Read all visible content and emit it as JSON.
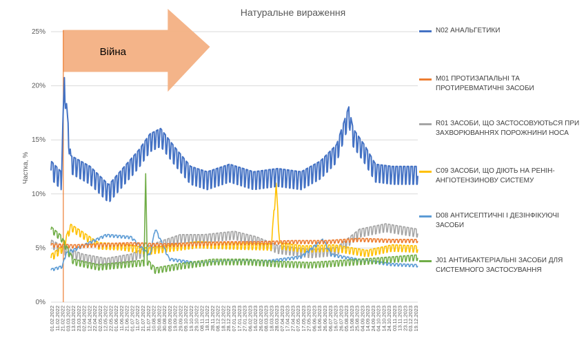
{
  "chart_data": {
    "type": "line",
    "title": "Натуральне вираження",
    "ylabel": "Частка, %",
    "xlabel": "",
    "ylim": [
      0,
      25
    ],
    "y_ticks": [
      "0%",
      "5%",
      "10%",
      "15%",
      "20%",
      "25%"
    ],
    "y_tick_values": [
      0,
      5,
      10,
      15,
      20,
      25
    ],
    "grid": true,
    "legend_position": "right",
    "x_date_range": [
      "2022-02-01",
      "2023-12-19"
    ],
    "x_tick_labels": [
      "01.02.2022",
      "11.02.2022",
      "21.02.2022",
      "03.03.2022",
      "13.03.2022",
      "23.03.2022",
      "02.04.2022",
      "12.04.2022",
      "22.04.2022",
      "02.05.2022",
      "12.05.2022",
      "22.05.2022",
      "01.06.2022",
      "11.06.2022",
      "21.06.2022",
      "01.07.2022",
      "11.07.2022",
      "21.07.2022",
      "31.07.2022",
      "10.08.2022",
      "20.08.2022",
      "30.08.2022",
      "09.09.2022",
      "19.09.2022",
      "29.09.2022",
      "09.10.2022",
      "19.10.2022",
      "29.10.2022",
      "08.11.2022",
      "18.11.2022",
      "28.11.2022",
      "08.12.2022",
      "18.12.2022",
      "28.12.2022",
      "07.01.2023",
      "17.01.2023",
      "27.01.2023",
      "06.02.2023",
      "16.02.2023",
      "26.02.2023",
      "08.03.2023",
      "18.03.2023",
      "28.03.2023",
      "07.04.2023",
      "17.04.2023",
      "27.04.2023",
      "07.05.2023",
      "17.05.2023",
      "27.05.2023",
      "06.06.2023",
      "16.06.2023",
      "26.06.2023",
      "06.07.2023",
      "16.07.2023",
      "26.07.2023",
      "05.08.2023",
      "15.08.2023",
      "25.08.2023",
      "04.09.2023",
      "14.09.2023",
      "24.09.2023",
      "04.10.2023",
      "14.10.2023",
      "24.10.2023",
      "03.11.2023",
      "13.11.2023",
      "23.11.2023",
      "03.12.2023",
      "19.12.2023"
    ],
    "annotation": {
      "text": "Війна",
      "marker_date": "2022-02-24",
      "arrow_color": "#f4b183",
      "line_color": "#ed7d31"
    },
    "series": [
      {
        "name": "N02 АНАЛЬГЕТИКИ",
        "color": "#4472c4",
        "dates": [
          "2022-02-01",
          "2022-02-20",
          "2022-02-26",
          "2022-03-10",
          "2022-04-15",
          "2022-05-20",
          "2022-06-15",
          "2022-07-15",
          "2022-08-05",
          "2022-08-25",
          "2022-09-20",
          "2022-10-20",
          "2022-11-20",
          "2023-01-01",
          "2023-02-15",
          "2023-04-01",
          "2023-05-15",
          "2023-06-20",
          "2023-07-20",
          "2023-08-12",
          "2023-08-20",
          "2023-09-10",
          "2023-10-01",
          "2023-11-01",
          "2023-12-19"
        ],
        "values": [
          12.5,
          11.5,
          20.2,
          13.0,
          12.0,
          10.3,
          11.8,
          13.5,
          15.0,
          15.5,
          13.8,
          12.0,
          11.5,
          12.2,
          11.5,
          11.8,
          11.5,
          12.5,
          14.0,
          17.5,
          15.5,
          14.0,
          12.2,
          12.0,
          12.0
        ],
        "amplitude": 1.1
      },
      {
        "name": "M01 ПРОТИЗАПАЛЬНІ ТА ПРОТИРЕВМАТИЧНІ ЗАСОБИ",
        "color": "#ed7d31",
        "dates": [
          "2022-02-01",
          "2022-03-15",
          "2022-05-01",
          "2022-07-01",
          "2022-09-01",
          "2022-11-01",
          "2023-01-01",
          "2023-03-01",
          "2023-05-01",
          "2023-07-01",
          "2023-09-01",
          "2023-11-01",
          "2023-12-19"
        ],
        "values": [
          5.3,
          5.2,
          5.3,
          5.4,
          5.3,
          5.4,
          5.5,
          5.5,
          5.6,
          5.6,
          5.8,
          5.7,
          5.7
        ],
        "amplitude": 0.2
      },
      {
        "name": "R01 ЗАСОБИ, ЩО ЗАСТОСОВУЮТЬСЯ ПРИ ЗАХВОРЮВАННЯХ ПОРОЖНИНИ НОСА",
        "color": "#a5a5a5",
        "dates": [
          "2022-02-01",
          "2022-03-01",
          "2022-04-01",
          "2022-05-15",
          "2022-07-01",
          "2022-08-20",
          "2022-10-01",
          "2022-11-15",
          "2023-01-10",
          "2023-02-20",
          "2023-04-01",
          "2023-06-01",
          "2023-07-20",
          "2023-09-01",
          "2023-10-20",
          "2023-12-19"
        ],
        "values": [
          5.5,
          4.8,
          4.2,
          3.8,
          4.2,
          5.3,
          6.0,
          6.0,
          6.3,
          5.8,
          5.0,
          4.6,
          4.8,
          6.5,
          7.0,
          6.5
        ],
        "amplitude": 0.5
      },
      {
        "name": "C09 ЗАСОБИ, ЩО ДІЮТЬ НА РЕНІН-АНГІОТЕНЗИНОВУ СИСТЕМУ",
        "color": "#ffc000",
        "dates": [
          "2022-02-01",
          "2022-02-22",
          "2022-03-10",
          "2022-04-01",
          "2022-05-01",
          "2022-06-15",
          "2022-08-01",
          "2022-09-15",
          "2022-11-01",
          "2023-01-01",
          "2023-03-20",
          "2023-03-29",
          "2023-04-05",
          "2023-05-20",
          "2023-07-15",
          "2023-09-15",
          "2023-11-01",
          "2023-12-19"
        ],
        "values": [
          4.2,
          5.0,
          7.0,
          6.3,
          5.3,
          5.2,
          4.8,
          5.1,
          5.4,
          5.3,
          5.2,
          10.8,
          5.3,
          5.0,
          5.1,
          4.6,
          5.1,
          5.0
        ],
        "amplitude": 0.4
      },
      {
        "name": "D08 АНТИСЕПТИЧНІ І ДЕЗІНФІКУЮЧІ ЗАСОБИ",
        "color": "#5b9bd5",
        "dates": [
          "2022-02-01",
          "2022-02-22",
          "2022-03-01",
          "2022-04-01",
          "2022-05-15",
          "2022-07-01",
          "2022-08-05",
          "2022-08-15",
          "2022-09-10",
          "2022-11-01",
          "2023-01-01",
          "2023-03-15",
          "2023-05-15",
          "2023-06-25",
          "2023-07-10",
          "2023-09-01",
          "2023-11-01",
          "2023-12-19"
        ],
        "values": [
          3.0,
          3.3,
          4.5,
          5.2,
          6.2,
          6.0,
          4.3,
          6.8,
          4.0,
          3.6,
          3.8,
          3.8,
          4.2,
          5.8,
          4.4,
          3.9,
          3.5,
          3.4
        ],
        "amplitude": 0.15
      },
      {
        "name": "J01 АНТИБАКТЕРІАЛЬНІ ЗАСОБИ ДЛЯ СИСТЕМНОГО ЗАСТОСУВАННЯ",
        "color": "#70ad47",
        "dates": [
          "2022-02-01",
          "2022-02-20",
          "2022-03-15",
          "2022-05-01",
          "2022-07-01",
          "2022-07-25",
          "2022-07-28",
          "2022-07-31",
          "2022-08-15",
          "2022-10-01",
          "2022-12-01",
          "2023-02-01",
          "2023-04-01",
          "2023-06-01",
          "2023-08-01",
          "2023-10-01",
          "2023-12-19"
        ],
        "values": [
          6.8,
          6.0,
          3.8,
          3.3,
          3.6,
          3.7,
          11.7,
          3.8,
          3.0,
          3.4,
          3.8,
          3.8,
          3.6,
          3.5,
          3.7,
          3.9,
          4.2
        ],
        "amplitude": 0.35
      }
    ]
  }
}
